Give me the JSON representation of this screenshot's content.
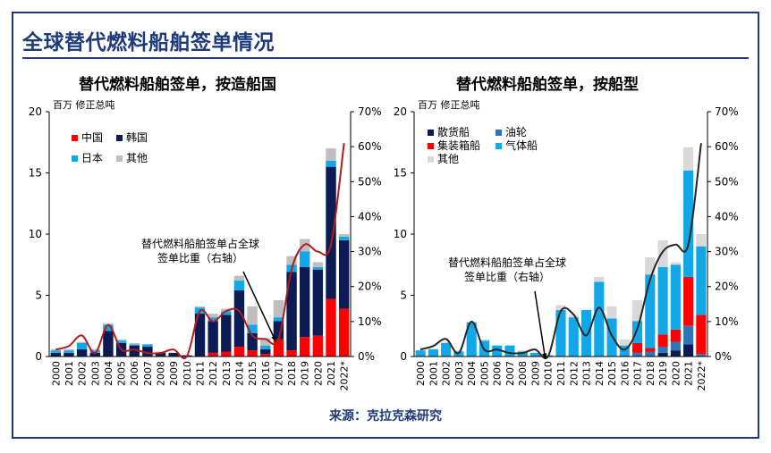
{
  "page": {
    "title": "全球替代燃料船舶签单情况",
    "source": "来源：克拉克森研究"
  },
  "chart_data": [
    {
      "type": "bar",
      "stacked": true,
      "title": "替代燃料船舶签单，按造船国",
      "left_axis_unit": "百万 修正总吨",
      "categories": [
        "2000",
        "2001",
        "2002",
        "2003",
        "2004",
        "2005",
        "2006",
        "2007",
        "2008",
        "2009",
        "2010",
        "2011",
        "2012",
        "2013",
        "2014",
        "2015",
        "2016",
        "2017",
        "2018",
        "2019",
        "2020",
        "2021",
        "2022*"
      ],
      "ylim": [
        0,
        20
      ],
      "yticks": [
        "0",
        "5",
        "10",
        "15",
        "20"
      ],
      "y2lim": [
        0,
        70
      ],
      "y2ticks": [
        "0%",
        "10%",
        "20%",
        "30%",
        "40%",
        "50%",
        "60%",
        "70%"
      ],
      "series": [
        {
          "name": "中国",
          "color": "#ff0000",
          "values": [
            0,
            0,
            0,
            0,
            0,
            0,
            0,
            0,
            0,
            0,
            0,
            0,
            0.3,
            0.4,
            0.8,
            0.5,
            0.2,
            1.4,
            0.5,
            1.6,
            1.7,
            4.7,
            3.9
          ]
        },
        {
          "name": "韩国",
          "color": "#0d1b55",
          "values": [
            0.3,
            0.3,
            0.6,
            0.3,
            2.1,
            1.1,
            0.9,
            0.8,
            0.3,
            0.3,
            0.1,
            3.5,
            2.6,
            3.0,
            4.6,
            1.4,
            0.4,
            1.5,
            6.4,
            5.7,
            5.4,
            10.8,
            5.6
          ]
        },
        {
          "name": "日本",
          "color": "#12a7e6",
          "values": [
            0.2,
            0.2,
            0.5,
            0.2,
            0.5,
            0.2,
            0.1,
            0.2,
            0,
            0,
            0,
            0.5,
            0.3,
            0.3,
            0.8,
            0.7,
            0.3,
            0.3,
            0.6,
            1.3,
            0.2,
            0.5,
            0.3
          ]
        },
        {
          "name": "其他",
          "color": "#bfbfbf",
          "values": [
            0.1,
            0.1,
            0.1,
            0.1,
            0.1,
            0.1,
            0.1,
            0,
            0.1,
            0,
            0,
            0.1,
            0.3,
            0.2,
            0.4,
            1.5,
            0.6,
            1.4,
            0.7,
            1.0,
            0.4,
            1.0,
            0.2
          ]
        }
      ],
      "line": {
        "name": "替代燃料船舶签单占全球签单比重（右轴）",
        "color": "#b11c1c",
        "values": [
          2,
          3,
          6,
          1,
          9,
          2,
          2,
          1,
          1,
          2,
          0,
          13,
          10,
          13,
          13,
          6,
          5,
          5,
          25,
          32,
          30,
          32,
          61
        ]
      },
      "annotation": "替代燃料船舶签单占全球\n签单比重（右轴）",
      "legend": "top-left"
    },
    {
      "type": "bar",
      "stacked": true,
      "title": "替代燃料船舶签单，按船型",
      "left_axis_unit": "百万 修正总吨",
      "categories": [
        "2000",
        "2001",
        "2002",
        "2003",
        "2004",
        "2005",
        "2006",
        "2007",
        "2008",
        "2009",
        "2010",
        "2011",
        "2012",
        "2013",
        "2014",
        "2015",
        "2016",
        "2017",
        "2018",
        "2019",
        "2020",
        "2021",
        "2022*"
      ],
      "ylim": [
        0,
        20
      ],
      "yticks": [
        "0",
        "5",
        "10",
        "15",
        "20"
      ],
      "y2lim": [
        0,
        70
      ],
      "y2ticks": [
        "0%",
        "10%",
        "20%",
        "30%",
        "40%",
        "50%",
        "60%",
        "70%"
      ],
      "series": [
        {
          "name": "散货船",
          "color": "#0d1b55",
          "values": [
            0,
            0,
            0,
            0,
            0,
            0,
            0,
            0,
            0,
            0,
            0,
            0,
            0,
            0,
            0,
            0,
            0,
            0,
            0,
            0.3,
            0.5,
            1.0,
            0
          ]
        },
        {
          "name": "油轮",
          "color": "#2e75b6",
          "values": [
            0,
            0,
            0,
            0,
            0,
            0,
            0,
            0,
            0,
            0,
            0,
            0,
            0,
            0,
            0,
            0,
            0.1,
            0.3,
            0.4,
            0.5,
            0.7,
            1.5,
            0.2
          ]
        },
        {
          "name": "集装箱船",
          "color": "#ff0000",
          "values": [
            0,
            0,
            0,
            0,
            0,
            0,
            0,
            0,
            0,
            0,
            0,
            0,
            0,
            0,
            0,
            0,
            0,
            0.8,
            0.3,
            1.0,
            1.0,
            4.0,
            3.2
          ]
        },
        {
          "name": "气体船",
          "color": "#12a7e6",
          "values": [
            0.5,
            0.6,
            1.1,
            0.4,
            2.8,
            1.3,
            0.9,
            0.9,
            0.4,
            0.3,
            0.1,
            3.8,
            3.2,
            3.8,
            6.1,
            3.1,
            0.8,
            1.8,
            6.0,
            5.5,
            5.3,
            8.7,
            5.6
          ]
        },
        {
          "name": "其他",
          "color": "#d9d9d9",
          "values": [
            0,
            0,
            0.1,
            0.1,
            0,
            0.1,
            0,
            0,
            0.1,
            0,
            0,
            0.4,
            0.2,
            0,
            0.4,
            1.0,
            0.5,
            1.7,
            1.4,
            2.2,
            0.2,
            1.9,
            1.0
          ]
        }
      ],
      "line": {
        "name": "替代燃料船舶签单占全球签单比重（右轴）",
        "color": "#262626",
        "values": [
          2,
          3,
          5,
          1,
          10,
          2,
          2,
          1,
          1,
          2,
          0,
          13,
          12,
          6,
          14,
          6,
          2,
          8,
          22,
          30,
          32,
          32,
          61
        ]
      },
      "annotation": "替代燃料船舶签单占全球\n签单比重（右轴）",
      "legend": "top-left"
    }
  ]
}
